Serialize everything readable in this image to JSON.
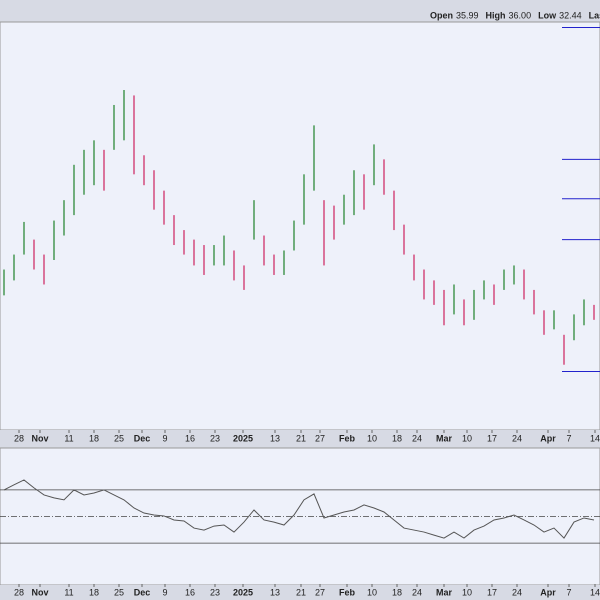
{
  "header": {
    "items": [
      {
        "label": "Open",
        "value": "35.99"
      },
      {
        "label": "High",
        "value": "36.00"
      },
      {
        "label": "Low",
        "value": "32.44"
      },
      {
        "label": "Last"
      }
    ]
  },
  "chart_data": [
    {
      "type": "ohlc",
      "up_color": "#2e8b3a",
      "down_color": "#d0306a",
      "level_color": "#2222cc",
      "ylim": [
        28,
        58
      ],
      "xlim": [
        -0.2,
        59.8
      ],
      "levels": [
        57.6,
        47.9,
        45.0,
        42.0,
        32.3
      ],
      "high": [
        39.8,
        40.9,
        43.3,
        42.0,
        40.9,
        43.4,
        44.9,
        47.5,
        48.6,
        49.3,
        48.6,
        51.9,
        53.0,
        52.6,
        48.2,
        47.1,
        45.6,
        43.8,
        42.7,
        42.0,
        41.6,
        41.6,
        42.3,
        41.2,
        40.1,
        44.9,
        42.3,
        40.9,
        41.2,
        43.4,
        46.8,
        50.4,
        44.9,
        44.5,
        45.3,
        47.1,
        46.8,
        49.0,
        47.9,
        45.6,
        43.1,
        40.9,
        39.8,
        39.0,
        38.3,
        38.7,
        37.6,
        38.3,
        39.0,
        38.7,
        39.8,
        40.1,
        39.8,
        38.3,
        36.8,
        36.8,
        35.0,
        36.5,
        37.6,
        37.2
      ],
      "low": [
        37.9,
        39.0,
        40.9,
        39.8,
        38.7,
        40.5,
        42.3,
        43.8,
        45.3,
        46.0,
        45.6,
        48.6,
        49.3,
        46.8,
        46.0,
        44.2,
        43.1,
        41.6,
        40.9,
        40.1,
        39.4,
        40.1,
        40.1,
        39.0,
        38.3,
        42.0,
        40.1,
        39.4,
        39.4,
        41.2,
        43.1,
        45.6,
        40.1,
        42.0,
        43.1,
        43.8,
        44.2,
        46.0,
        45.3,
        42.7,
        40.9,
        39.0,
        37.6,
        37.2,
        35.7,
        36.5,
        35.7,
        36.1,
        37.6,
        37.2,
        38.3,
        38.7,
        37.6,
        36.5,
        35.0,
        35.4,
        32.8,
        34.6,
        35.7,
        36.1
      ],
      "xticks": [
        {
          "value": 1.5,
          "label": "28"
        },
        {
          "value": 3.6,
          "label": "Nov"
        },
        {
          "value": 6.5,
          "label": "11"
        },
        {
          "value": 9,
          "label": "18"
        },
        {
          "value": 11.5,
          "label": "25"
        },
        {
          "value": 13.8,
          "label": "Dec"
        },
        {
          "value": 16.1,
          "label": "9"
        },
        {
          "value": 18.6,
          "label": "16"
        },
        {
          "value": 21.1,
          "label": "23"
        },
        {
          "value": 23.9,
          "label": "2025"
        },
        {
          "value": 27.1,
          "label": "13"
        },
        {
          "value": 29.7,
          "label": "21"
        },
        {
          "value": 31.6,
          "label": "27"
        },
        {
          "value": 34.3,
          "label": "Feb"
        },
        {
          "value": 36.8,
          "label": "10"
        },
        {
          "value": 39.3,
          "label": "18"
        },
        {
          "value": 41.3,
          "label": "24"
        },
        {
          "value": 44,
          "label": "Mar"
        },
        {
          "value": 46.3,
          "label": "10"
        },
        {
          "value": 48.8,
          "label": "17"
        },
        {
          "value": 51.3,
          "label": "24"
        },
        {
          "value": 54.4,
          "label": "Apr"
        },
        {
          "value": 56.5,
          "label": "7"
        },
        {
          "value": 59.1,
          "label": "14"
        }
      ]
    },
    {
      "type": "line",
      "color": "#555555",
      "ylim": [
        0,
        100
      ],
      "xlim": [
        -0.2,
        59.8
      ],
      "levels": [
        70,
        50,
        30
      ],
      "values": [
        70,
        73.8,
        77.5,
        71.5,
        66.2,
        64,
        62.5,
        70,
        66.2,
        67.7,
        70,
        66.2,
        62.5,
        56.4,
        52.6,
        51.1,
        50.4,
        47.4,
        46.6,
        41.3,
        39.8,
        42.8,
        43.6,
        38.3,
        45.8,
        54.9,
        47.4,
        45.8,
        43.6,
        51.1,
        62.5,
        67,
        48.9,
        51.1,
        53.4,
        54.9,
        58.7,
        56.4,
        53.4,
        47.4,
        41.3,
        39.8,
        38.3,
        36,
        33.8,
        38.3,
        33.8,
        39.8,
        42.8,
        47.4,
        48.9,
        51.1,
        47.4,
        43.6,
        38.3,
        41.3,
        33.8,
        45.8,
        48.9,
        47.4
      ],
      "xticks": [
        {
          "value": 1.5,
          "label": "28"
        },
        {
          "value": 3.6,
          "label": "Nov"
        },
        {
          "value": 6.5,
          "label": "11"
        },
        {
          "value": 9,
          "label": "18"
        },
        {
          "value": 11.5,
          "label": "25"
        },
        {
          "value": 13.8,
          "label": "Dec"
        },
        {
          "value": 16.1,
          "label": "9"
        },
        {
          "value": 18.6,
          "label": "16"
        },
        {
          "value": 21.1,
          "label": "23"
        },
        {
          "value": 23.9,
          "label": "2025"
        },
        {
          "value": 27.1,
          "label": "13"
        },
        {
          "value": 29.7,
          "label": "21"
        },
        {
          "value": 31.6,
          "label": "27"
        },
        {
          "value": 34.3,
          "label": "Feb"
        },
        {
          "value": 36.8,
          "label": "10"
        },
        {
          "value": 39.3,
          "label": "18"
        },
        {
          "value": 41.3,
          "label": "24"
        },
        {
          "value": 44,
          "label": "Mar"
        },
        {
          "value": 46.3,
          "label": "10"
        },
        {
          "value": 48.8,
          "label": "17"
        },
        {
          "value": 51.3,
          "label": "24"
        },
        {
          "value": 54.4,
          "label": "Apr"
        },
        {
          "value": 56.5,
          "label": "7"
        },
        {
          "value": 59.1,
          "label": "14"
        }
      ]
    }
  ]
}
